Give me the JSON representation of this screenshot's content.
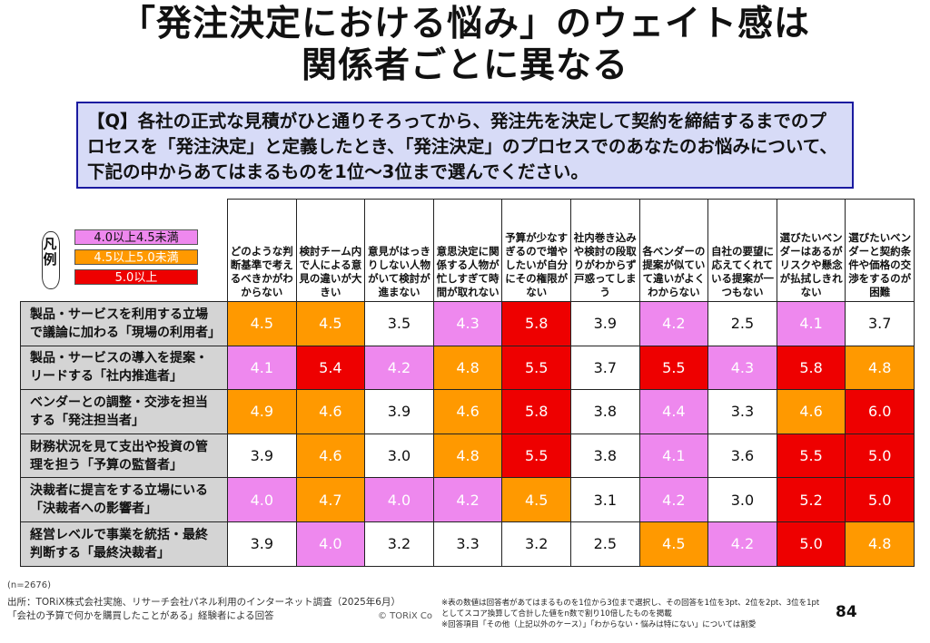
{
  "title_line1": "「発注決定における悩み」のウェイト感は",
  "title_line2": "関係者ごとに異なる",
  "question": "【Q】各社の正式な見積がひと通りそろってから、発注先を決定して契約を締結するまでのプロセスを「発注決定」と定義したとき、「発注決定」のプロセスでのあなたのお悩みについて、下記の中からあてはまるものを1位～3位まで選んでください。",
  "legend": {
    "label": "凡例",
    "items": [
      {
        "label": "4.0以上4.5未満",
        "color": "#ee88ee",
        "min": 4.0,
        "max": 4.5
      },
      {
        "label": "4.5以上5.0未満",
        "color": "#ff9900",
        "min": 4.5,
        "max": 5.0
      },
      {
        "label": "5.0以上",
        "color": "#ee0000",
        "min": 5.0,
        "max": 99
      }
    ]
  },
  "chart_data": {
    "type": "heatmap",
    "columns": [
      "どのような判断基準で考えるべきかがわからない",
      "検討チーム内で人による意見の違いが大きい",
      "意見がはっきりしない人物がいて検討が進まない",
      "意思決定に関係する人物が忙しすぎて時間が取れない",
      "予算が少なすぎるので増やしたいが自分にその権限がない",
      "社内巻き込みや検討の段取りがわからず戸惑ってしまう",
      "各ベンダーの提案が似ていて違いがよくわからない",
      "自社の要望に応えてくれている提案が一つもない",
      "選びたいベンダーはあるがリスクや懸念が払拭しきれない",
      "選びたいベンダーと契約条件や価格の交渉をするのが困難"
    ],
    "rows": [
      "製品・サービスを利用する立場で議論に加わる「現場の利用者」",
      "製品・サービスの導入を提案・リードする「社内推進者」",
      "ベンダーとの調整・交渉を担当する「発注担当者」",
      "財務状況を見て支出や投資の管理を担う「予算の監督者」",
      "決裁者に提言をする立場にいる「決裁者への影響者」",
      "経営レベルで事業を統括・最終判断する「最終決裁者」"
    ],
    "values": [
      [
        "4.5",
        "4.5",
        "3.5",
        "4.3",
        "5.8",
        "3.9",
        "4.2",
        "2.5",
        "4.1",
        "3.7"
      ],
      [
        "4.1",
        "5.4",
        "4.2",
        "4.8",
        "5.5",
        "3.7",
        "5.5",
        "4.3",
        "5.8",
        "4.8"
      ],
      [
        "4.9",
        "4.6",
        "3.9",
        "4.6",
        "5.8",
        "3.8",
        "4.4",
        "3.3",
        "4.6",
        "6.0"
      ],
      [
        "3.9",
        "4.6",
        "3.0",
        "4.8",
        "5.5",
        "3.8",
        "4.1",
        "3.6",
        "5.5",
        "5.0"
      ],
      [
        "4.0",
        "4.7",
        "4.0",
        "4.2",
        "4.5",
        "3.1",
        "4.2",
        "3.0",
        "5.2",
        "5.0"
      ],
      [
        "3.9",
        "4.0",
        "3.2",
        "3.3",
        "3.2",
        "2.5",
        "4.5",
        "4.2",
        "5.0",
        "4.8"
      ]
    ]
  },
  "colors": {
    "pink": "#ee88ee",
    "orange": "#ff9900",
    "red": "#ee0000",
    "row_header_bg": "#d4d4d4",
    "question_bg": "#d7dbf7",
    "question_border": "#1a1aa0"
  },
  "footer": {
    "n": "(n=2676)",
    "source_line1": "出所：TORiX株式会社実施、リサーチ会社パネル利用のインターネット調査（2025年6月）",
    "source_line2": "「会社の予算で何かを購買したことがある」経験者による回答",
    "copyright": "© TORiX Co",
    "note1": "※表の数値は回答者があてはまるものを1位から3位まで選択し、その回答を1位を3pt、2位を2pt、3位を1pt",
    "note2": "としてスコア換算して合計した値をn数で割り10倍したものを掲載",
    "note3": "※回答項目「その他（上記以外のケース）」「わからない・悩みは特にない」については割愛",
    "page": "84"
  }
}
